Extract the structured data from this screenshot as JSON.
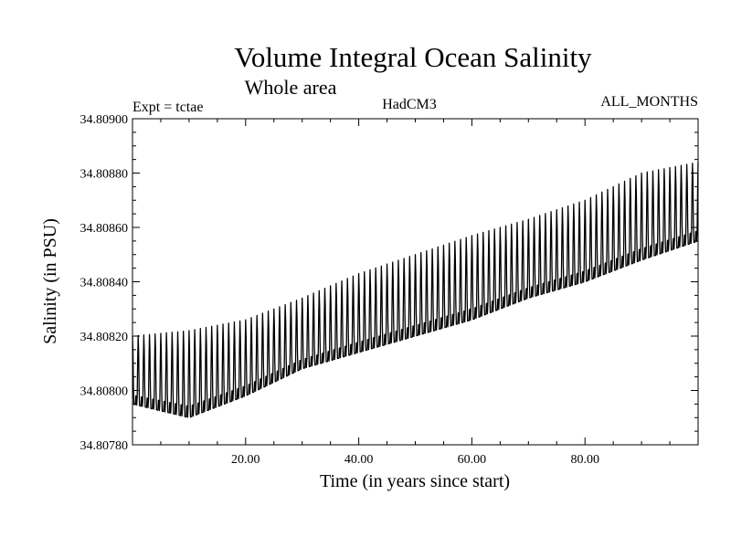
{
  "chart_data": {
    "type": "line",
    "title": "Volume Integral Ocean Salinity",
    "subtitle": "Whole area",
    "annotations": {
      "left": "Expt = tctae",
      "center": "HadCM3",
      "right": "ALL_MONTHS"
    },
    "xlabel": "Time (in years since start)",
    "ylabel": "Salinity (in PSU)",
    "xlim": [
      0,
      100
    ],
    "ylim": [
      34.8078,
      34.809
    ],
    "xticks": [
      20,
      40,
      60,
      80
    ],
    "xtick_labels": [
      "20.00",
      "40.00",
      "60.00",
      "80.00"
    ],
    "yticks": [
      34.8078,
      34.808,
      34.8082,
      34.8084,
      34.8086,
      34.8088,
      34.809
    ],
    "ytick_labels": [
      "34.80780",
      "34.80800",
      "34.80820",
      "34.80840",
      "34.80860",
      "34.80880",
      "34.80900"
    ],
    "grid": false,
    "series": [
      {
        "color": "#000000",
        "seasonal_period_years": 1,
        "trend_points": [
          {
            "x": 0,
            "low": 34.80795,
            "high": 34.8082
          },
          {
            "x": 10,
            "low": 34.8079,
            "high": 34.80822
          },
          {
            "x": 20,
            "low": 34.80798,
            "high": 34.80826
          },
          {
            "x": 30,
            "low": 34.80808,
            "high": 34.80834
          },
          {
            "x": 40,
            "low": 34.80814,
            "high": 34.80843
          },
          {
            "x": 50,
            "low": 34.8082,
            "high": 34.8085
          },
          {
            "x": 60,
            "low": 34.80826,
            "high": 34.80857
          },
          {
            "x": 70,
            "low": 34.80834,
            "high": 34.80863
          },
          {
            "x": 80,
            "low": 34.8084,
            "high": 34.8087
          },
          {
            "x": 90,
            "low": 34.80848,
            "high": 34.8088
          },
          {
            "x": 100,
            "low": 34.80855,
            "high": 34.80884
          }
        ]
      }
    ]
  }
}
